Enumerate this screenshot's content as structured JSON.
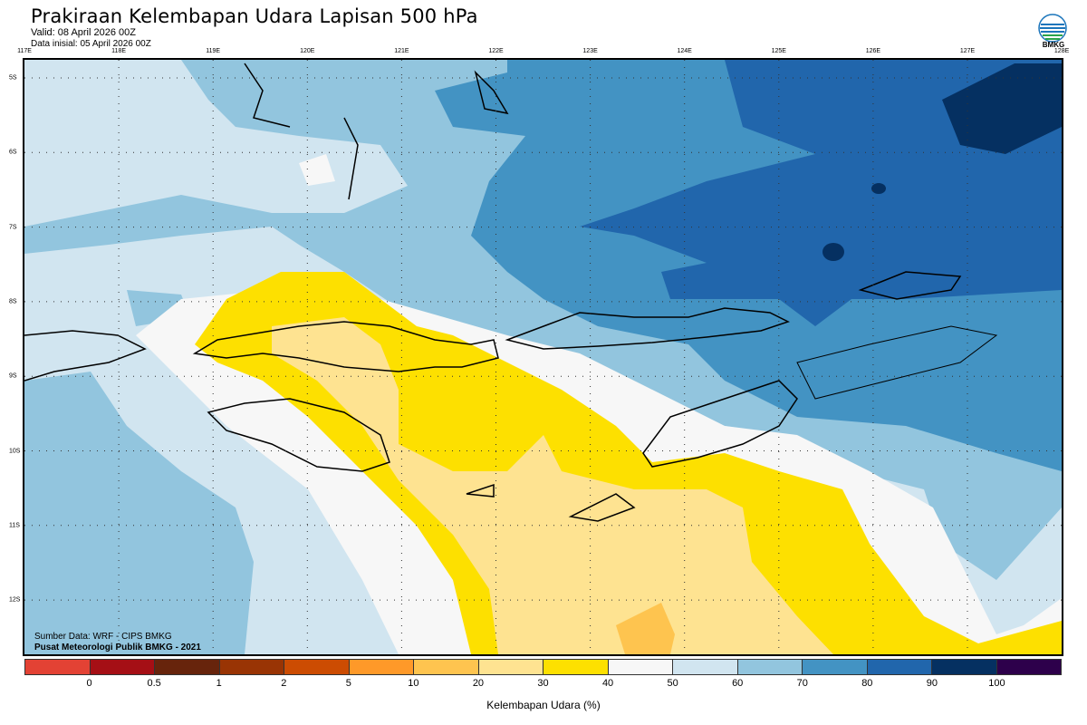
{
  "header": {
    "title": "Prakiraan Kelembapan Udara Lapisan 500 hPa",
    "valid": "Valid: 08 April 2026 00Z",
    "initial": "Data inisial: 05 April 2026 00Z",
    "logo_text": "BMKG"
  },
  "axes": {
    "longitudes": [
      "117E",
      "118E",
      "119E",
      "120E",
      "121E",
      "122E",
      "123E",
      "124E",
      "125E",
      "126E",
      "127E",
      "128E"
    ],
    "latitudes": [
      "5S",
      "6S",
      "7S",
      "8S",
      "9S",
      "10S",
      "11S",
      "12S"
    ]
  },
  "footer": {
    "source": "Sumber Data: WRF - CIPS BMKG",
    "credit": "Pusat Meteorologi Publik BMKG - 2021"
  },
  "colorbar": {
    "label": "Kelembapan Udara (%)",
    "ticks": [
      "0",
      "0.5",
      "1",
      "2",
      "5",
      "10",
      "20",
      "30",
      "40",
      "50",
      "60",
      "70",
      "80",
      "90",
      "100"
    ],
    "colors": [
      "#e34234",
      "#a50f15",
      "#67240c",
      "#993404",
      "#cc4c02",
      "#fe9929",
      "#fec44f",
      "#fee391",
      "#fde000",
      "#f7f7f7",
      "#d1e5f0",
      "#92c5de",
      "#4393c3",
      "#2166ac",
      "#053061",
      "#2d004b"
    ]
  }
}
